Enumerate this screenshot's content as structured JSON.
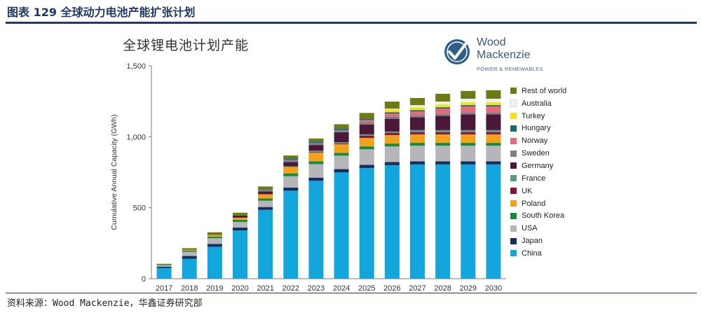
{
  "figure_title": "图表 129 全球动力电池产能扩张计划",
  "chart_heading": "全球锂电池计划产能",
  "logo": {
    "word1": "Wood",
    "word2": "Mackenzie",
    "tagline": "POWER & RENEWABLES",
    "icon": "wood-mackenzie-checkmark-logo"
  },
  "source": "资料来源：Wood Mackenzie，华鑫证券研究部",
  "chart_data": {
    "type": "bar",
    "stacked": true,
    "ylabel": "Cumulative Annual Capacity (GWh)",
    "xlabel": "",
    "ylim": [
      0,
      1500
    ],
    "yticks": [
      0,
      500,
      1000,
      1500
    ],
    "ytick_labels": [
      "0",
      "500",
      "1,000",
      "1,500"
    ],
    "grid": false,
    "legend_position": "right",
    "categories": [
      "2017",
      "2018",
      "2019",
      "2020",
      "2021",
      "2022",
      "2023",
      "2024",
      "2025",
      "2026",
      "2027",
      "2028",
      "2029",
      "2030"
    ],
    "series": [
      {
        "name": "China",
        "color": "#12a6dc",
        "values": [
          75,
          140,
          225,
          340,
          485,
          620,
          690,
          750,
          780,
          800,
          805,
          805,
          805,
          805
        ]
      },
      {
        "name": "Japan",
        "color": "#1a2c57",
        "values": [
          10,
          20,
          20,
          20,
          20,
          22,
          22,
          22,
          22,
          22,
          22,
          22,
          22,
          22
        ]
      },
      {
        "name": "USA",
        "color": "#b4b6b9",
        "values": [
          10,
          30,
          40,
          40,
          45,
          80,
          95,
          95,
          110,
          110,
          110,
          110,
          110,
          110
        ]
      },
      {
        "name": "South Korea",
        "color": "#1a8a3a",
        "values": [
          5,
          8,
          12,
          15,
          15,
          20,
          20,
          20,
          20,
          20,
          20,
          20,
          20,
          20
        ]
      },
      {
        "name": "Poland",
        "color": "#f4a21c",
        "values": [
          0,
          5,
          10,
          15,
          30,
          45,
          60,
          60,
          60,
          60,
          60,
          60,
          60,
          60
        ]
      },
      {
        "name": "UK",
        "color": "#8a1040",
        "values": [
          0,
          0,
          0,
          0,
          0,
          0,
          5,
          5,
          15,
          15,
          15,
          15,
          15,
          15
        ]
      },
      {
        "name": "France",
        "color": "#5e9688",
        "values": [
          0,
          0,
          0,
          0,
          0,
          5,
          10,
          10,
          10,
          10,
          15,
          15,
          15,
          15
        ]
      },
      {
        "name": "Germany",
        "color": "#4a1838",
        "values": [
          0,
          0,
          0,
          15,
          20,
          30,
          40,
          70,
          70,
          90,
          90,
          100,
          110,
          110
        ]
      },
      {
        "name": "Sweden",
        "color": "#7f7f85",
        "values": [
          0,
          0,
          0,
          0,
          10,
          16,
          16,
          16,
          16,
          16,
          16,
          16,
          16,
          16
        ]
      },
      {
        "name": "Norway",
        "color": "#e8687c",
        "values": [
          0,
          0,
          0,
          0,
          0,
          0,
          0,
          0,
          15,
          20,
          25,
          35,
          40,
          40
        ]
      },
      {
        "name": "Hungary",
        "color": "#1e6a72",
        "values": [
          0,
          0,
          0,
          0,
          5,
          10,
          10,
          10,
          10,
          10,
          10,
          10,
          10,
          10
        ]
      },
      {
        "name": "Turkey",
        "color": "#f2e21c",
        "values": [
          0,
          0,
          0,
          0,
          0,
          0,
          0,
          0,
          0,
          20,
          20,
          20,
          20,
          20
        ]
      },
      {
        "name": "Australia",
        "color": "#eef0f6",
        "values": [
          0,
          0,
          0,
          0,
          0,
          0,
          0,
          0,
          0,
          5,
          15,
          20,
          25,
          25
        ]
      },
      {
        "name": "Rest of world",
        "color": "#6e7a14",
        "values": [
          5,
          12,
          20,
          20,
          20,
          20,
          20,
          30,
          40,
          50,
          50,
          55,
          55,
          60
        ]
      }
    ]
  }
}
